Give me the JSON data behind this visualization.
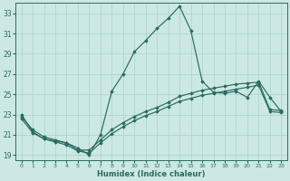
{
  "xlabel": "Humidex (Indice chaleur)",
  "background_color": "#cce8e4",
  "grid_color": "#b0d4d0",
  "line_color": "#2a6b60",
  "xlim": [
    -0.5,
    23.5
  ],
  "ylim": [
    18.5,
    34.0
  ],
  "xticks": [
    0,
    1,
    2,
    3,
    4,
    5,
    6,
    7,
    8,
    9,
    10,
    11,
    12,
    13,
    14,
    15,
    16,
    17,
    18,
    19,
    20,
    21,
    22,
    23
  ],
  "yticks": [
    19,
    21,
    23,
    25,
    27,
    29,
    31,
    33
  ],
  "line1_x": [
    0,
    1,
    2,
    3,
    4,
    5,
    6,
    7,
    8,
    9,
    10,
    11,
    12,
    13,
    14,
    15,
    16,
    17,
    18,
    19,
    20,
    21,
    22,
    23
  ],
  "line1_y": [
    23.0,
    21.3,
    20.6,
    20.4,
    20.2,
    19.7,
    19.0,
    21.0,
    25.3,
    27.0,
    29.2,
    30.3,
    31.5,
    32.5,
    33.7,
    31.3,
    26.3,
    25.2,
    25.1,
    25.3,
    24.7,
    26.3,
    24.7,
    23.3
  ],
  "line2_x": [
    0,
    1,
    2,
    3,
    4,
    5,
    6,
    7,
    8,
    9,
    10,
    11,
    12,
    13,
    14,
    15,
    16,
    17,
    18,
    19,
    20,
    21,
    22,
    23
  ],
  "line2_y": [
    22.8,
    21.5,
    20.8,
    20.5,
    20.2,
    19.5,
    19.5,
    20.5,
    21.5,
    22.2,
    22.8,
    23.3,
    23.7,
    24.2,
    24.8,
    25.1,
    25.4,
    25.6,
    25.8,
    26.0,
    26.1,
    26.2,
    23.5,
    23.4
  ],
  "line3_x": [
    0,
    1,
    2,
    3,
    4,
    5,
    6,
    7,
    8,
    9,
    10,
    11,
    12,
    13,
    14,
    15,
    16,
    17,
    18,
    19,
    20,
    21,
    22,
    23
  ],
  "line3_y": [
    22.6,
    21.2,
    20.6,
    20.3,
    20.0,
    19.4,
    19.2,
    20.2,
    21.1,
    21.8,
    22.4,
    22.9,
    23.3,
    23.8,
    24.3,
    24.6,
    24.9,
    25.1,
    25.3,
    25.5,
    25.7,
    25.9,
    23.3,
    23.2
  ]
}
